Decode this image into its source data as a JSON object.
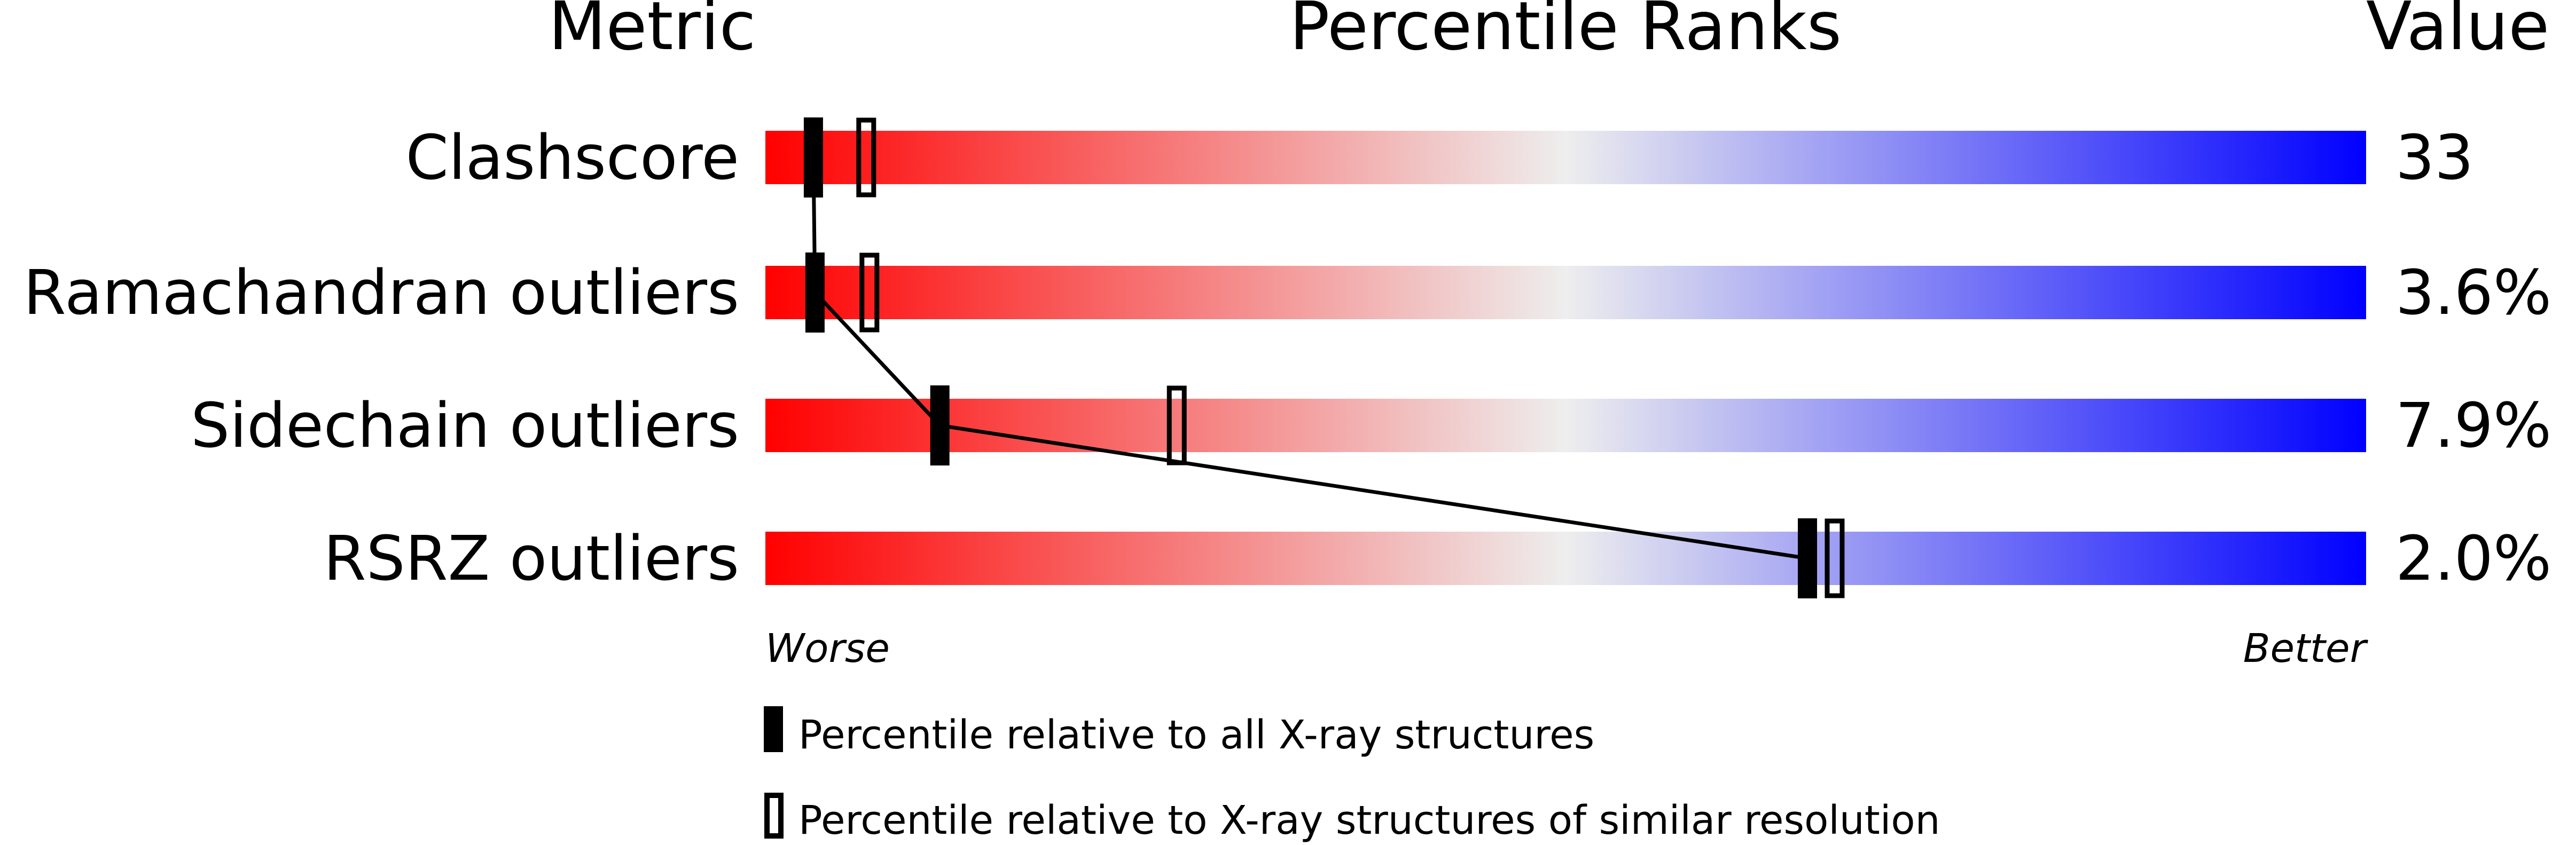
{
  "chart_data": {
    "type": "bar",
    "title": "Percentile Ranks",
    "column_headers": {
      "metric": "Metric",
      "ranks": "Percentile Ranks",
      "value": "Value"
    },
    "xlim": [
      0,
      100
    ],
    "x_axis_labels": {
      "left": "Worse",
      "right": "Better"
    },
    "gradient_colors": [
      "#ff0000",
      "#eeeeee",
      "#0000ff"
    ],
    "categories": [
      "Clashscore",
      "Ramachandran outliers",
      "Sidechain outliers",
      "RSRZ outliers"
    ],
    "values": [
      "33",
      "3.6%",
      "7.9%",
      "2.0%"
    ],
    "series": [
      {
        "name": "Percentile relative to all X-ray structures",
        "marker": "filled",
        "values": [
          3.0,
          3.1,
          10.9,
          65.1
        ]
      },
      {
        "name": "Percentile relative to X-ray structures of similar resolution",
        "marker": "open",
        "values": [
          6.3,
          6.5,
          25.7,
          66.8
        ]
      }
    ],
    "legend_position": "bottom"
  }
}
